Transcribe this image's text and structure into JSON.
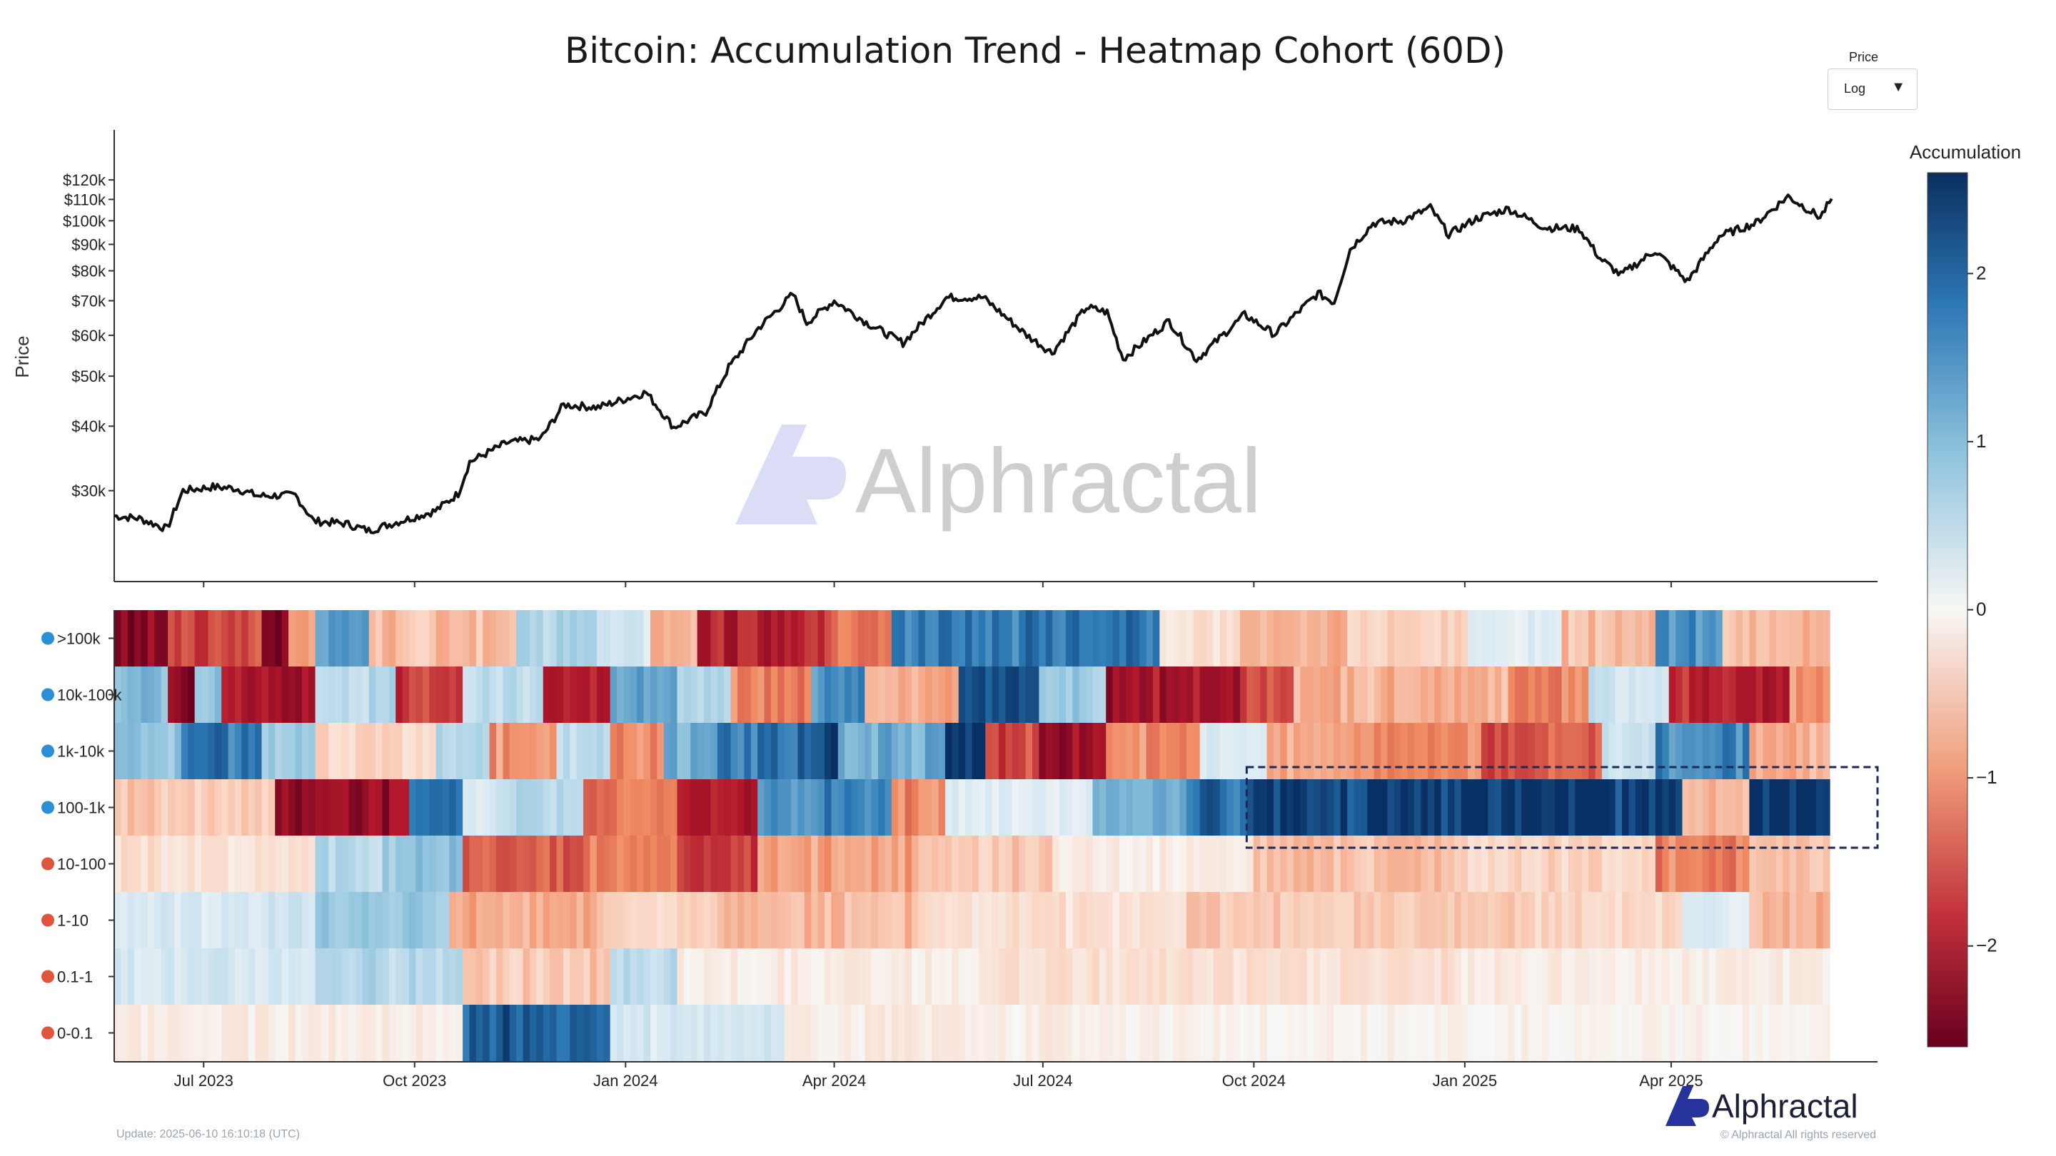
{
  "title": "Bitcoin: Accumulation Trend - Heatmap Cohort (60D)",
  "scale_selector": {
    "label": "Price",
    "value": "Log",
    "arrow": "▼"
  },
  "update_text": "Update: 2025-06-10 16:10:18 (UTC)",
  "copyright": "© Alphractal All rights reserved",
  "brand": "Alphractal",
  "watermark": "Alphractal",
  "colors": {
    "line": "#111111",
    "dark_blue": "#0b3a6e",
    "dark_red": "#7a0c1e",
    "neutral": "#f6f6f4",
    "highlight": "#1c2a5a"
  },
  "chart_data": [
    {
      "type": "line",
      "ylabel": "Price",
      "yscale": "log",
      "ylim": [
        20000,
        150000
      ],
      "y_ticks": [
        30000,
        40000,
        50000,
        60000,
        70000,
        80000,
        90000,
        100000,
        110000,
        120000
      ],
      "y_tick_labels": [
        "$30k",
        "$40k",
        "$50k",
        "$60k",
        "$70k",
        "$80k",
        "$90k",
        "$100k",
        "$110k",
        "$120k"
      ],
      "xlim": [
        "2023-05-23",
        "2025-06-30"
      ],
      "x_ticks": [
        "2023-07-01",
        "2023-10-01",
        "2024-01-01",
        "2024-04-01",
        "2024-07-01",
        "2024-10-01",
        "2025-01-01",
        "2025-04-01"
      ],
      "x_tick_labels": [
        "Jul 2023",
        "Oct 2023",
        "Jan 2024",
        "Apr 2024",
        "Jul 2024",
        "Oct 2024",
        "Jan 2025",
        "Apr 2025"
      ],
      "series": [
        {
          "points": [
            [
              "2023-05-23",
              26800
            ],
            [
              "2023-06-03",
              26500
            ],
            [
              "2023-06-15",
              25300
            ],
            [
              "2023-06-22",
              30000
            ],
            [
              "2023-07-05",
              30500
            ],
            [
              "2023-07-15",
              30300
            ],
            [
              "2023-07-25",
              29300
            ],
            [
              "2023-08-10",
              29400
            ],
            [
              "2023-08-18",
              26200
            ],
            [
              "2023-09-01",
              25900
            ],
            [
              "2023-09-11",
              25100
            ],
            [
              "2023-09-25",
              26200
            ],
            [
              "2023-10-10",
              27400
            ],
            [
              "2023-10-20",
              29600
            ],
            [
              "2023-10-25",
              34100
            ],
            [
              "2023-11-10",
              37100
            ],
            [
              "2023-11-25",
              37800
            ],
            [
              "2023-12-05",
              44000
            ],
            [
              "2023-12-20",
              43500
            ],
            [
              "2024-01-10",
              46500
            ],
            [
              "2024-01-22",
              39800
            ],
            [
              "2024-02-05",
              42600
            ],
            [
              "2024-02-15",
              52000
            ],
            [
              "2024-02-28",
              62000
            ],
            [
              "2024-03-14",
              72000
            ],
            [
              "2024-03-20",
              63500
            ],
            [
              "2024-04-01",
              70000
            ],
            [
              "2024-04-15",
              63500
            ],
            [
              "2024-05-01",
              58000
            ],
            [
              "2024-05-20",
              71000
            ],
            [
              "2024-06-05",
              71000
            ],
            [
              "2024-06-24",
              60000
            ],
            [
              "2024-07-05",
              55500
            ],
            [
              "2024-07-20",
              68000
            ],
            [
              "2024-07-29",
              66500
            ],
            [
              "2024-08-05",
              54000
            ],
            [
              "2024-08-25",
              64000
            ],
            [
              "2024-09-06",
              53800
            ],
            [
              "2024-09-27",
              65800
            ],
            [
              "2024-10-10",
              60300
            ],
            [
              "2024-10-29",
              72300
            ],
            [
              "2024-11-05",
              69500
            ],
            [
              "2024-11-12",
              88000
            ],
            [
              "2024-11-22",
              98900
            ],
            [
              "2024-12-05",
              100000
            ],
            [
              "2024-12-17",
              106000
            ],
            [
              "2024-12-25",
              94000
            ],
            [
              "2025-01-06",
              101000
            ],
            [
              "2025-01-20",
              105500
            ],
            [
              "2025-02-05",
              97000
            ],
            [
              "2025-02-20",
              96500
            ],
            [
              "2025-03-01",
              84500
            ],
            [
              "2025-03-10",
              78500
            ],
            [
              "2025-03-25",
              87500
            ],
            [
              "2025-04-08",
              76300
            ],
            [
              "2025-04-22",
              93400
            ],
            [
              "2025-05-08",
              99000
            ],
            [
              "2025-05-22",
              111500
            ],
            [
              "2025-06-05",
              101500
            ],
            [
              "2025-06-10",
              110300
            ]
          ]
        }
      ]
    },
    {
      "type": "heatmap",
      "colorbar_label": "Accumulation",
      "zlim": [
        -2.6,
        2.6
      ],
      "colorbar_ticks": [
        2,
        1,
        0,
        -1,
        -2
      ],
      "colorbar_tick_labels": [
        "2",
        "1",
        "0",
        "−1",
        "−2"
      ],
      "rows": [
        {
          "label": ">100k",
          "segments": [
            [
              0,
              8,
              -2.3
            ],
            [
              8,
              14,
              -1.6
            ],
            [
              14,
              22,
              -1.3
            ],
            [
              22,
              26,
              -2.4
            ],
            [
              26,
              30,
              -0.8
            ],
            [
              30,
              38,
              1.4
            ],
            [
              38,
              60,
              -0.5
            ],
            [
              60,
              72,
              0.7
            ],
            [
              72,
              80,
              0.3
            ],
            [
              80,
              87,
              -0.6
            ],
            [
              87,
              106,
              -1.8
            ],
            [
              106,
              116,
              -1.1
            ],
            [
              116,
              136,
              1.8
            ],
            [
              136,
              156,
              1.9
            ],
            [
              156,
              168,
              -0.2
            ],
            [
              168,
              184,
              -0.6
            ],
            [
              184,
              202,
              -0.3
            ],
            [
              202,
              216,
              0.2
            ],
            [
              216,
              230,
              -0.5
            ],
            [
              230,
              240,
              1.5
            ],
            [
              240,
              256,
              -0.5
            ]
          ]
        },
        {
          "label": "10k-100k",
          "segments": [
            [
              0,
              8,
              1.0
            ],
            [
              8,
              12,
              -2.4
            ],
            [
              12,
              16,
              0.9
            ],
            [
              16,
              30,
              -1.9
            ],
            [
              30,
              42,
              0.6
            ],
            [
              42,
              52,
              -1.6
            ],
            [
              52,
              64,
              0.5
            ],
            [
              64,
              74,
              -1.7
            ],
            [
              74,
              84,
              1.3
            ],
            [
              84,
              92,
              0.6
            ],
            [
              92,
              104,
              -1.0
            ],
            [
              104,
              112,
              1.5
            ],
            [
              112,
              126,
              -0.6
            ],
            [
              126,
              138,
              2.4
            ],
            [
              138,
              148,
              0.8
            ],
            [
              148,
              168,
              -2.0
            ],
            [
              168,
              176,
              -1.4
            ],
            [
              176,
              208,
              -0.6
            ],
            [
              208,
              220,
              -1.0
            ],
            [
              220,
              232,
              0.4
            ],
            [
              232,
              250,
              -1.8
            ],
            [
              250,
              256,
              -0.8
            ]
          ]
        },
        {
          "label": "1k-10k",
          "segments": [
            [
              0,
              10,
              0.9
            ],
            [
              10,
              22,
              1.8
            ],
            [
              22,
              30,
              0.8
            ],
            [
              30,
              48,
              -0.3
            ],
            [
              48,
              56,
              0.6
            ],
            [
              56,
              66,
              -0.8
            ],
            [
              66,
              74,
              0.5
            ],
            [
              74,
              82,
              -0.9
            ],
            [
              82,
              90,
              1.2
            ],
            [
              90,
              102,
              1.8
            ],
            [
              102,
              108,
              2.3
            ],
            [
              108,
              124,
              1.2
            ],
            [
              124,
              130,
              2.4
            ],
            [
              130,
              138,
              -1.4
            ],
            [
              138,
              148,
              -2.1
            ],
            [
              148,
              162,
              -0.9
            ],
            [
              162,
              172,
              0.3
            ],
            [
              172,
              188,
              -0.7
            ],
            [
              188,
              204,
              -0.9
            ],
            [
              204,
              222,
              -1.3
            ],
            [
              222,
              230,
              0.4
            ],
            [
              230,
              244,
              1.6
            ],
            [
              244,
              256,
              -0.6
            ]
          ]
        },
        {
          "label": "100-1k",
          "segments": [
            [
              0,
              24,
              -0.4
            ],
            [
              24,
              44,
              -2.1
            ],
            [
              44,
              52,
              1.9
            ],
            [
              52,
              58,
              0.3
            ],
            [
              58,
              70,
              0.6
            ],
            [
              70,
              84,
              -1.1
            ],
            [
              84,
              96,
              -1.8
            ],
            [
              96,
              104,
              1.4
            ],
            [
              104,
              116,
              1.7
            ],
            [
              116,
              124,
              -0.9
            ],
            [
              124,
              146,
              0.2
            ],
            [
              146,
              160,
              1.2
            ],
            [
              160,
              170,
              2.0
            ],
            [
              170,
              234,
              2.5
            ],
            [
              234,
              244,
              -0.5
            ],
            [
              244,
              256,
              2.5
            ]
          ]
        },
        {
          "label": "10-100",
          "segments": [
            [
              0,
              30,
              -0.2
            ],
            [
              30,
              40,
              0.6
            ],
            [
              40,
              52,
              0.9
            ],
            [
              52,
              70,
              -1.3
            ],
            [
              70,
              84,
              -1.0
            ],
            [
              84,
              96,
              -1.6
            ],
            [
              96,
              120,
              -0.7
            ],
            [
              120,
              140,
              -0.4
            ],
            [
              140,
              170,
              -0.1
            ],
            [
              170,
              200,
              -0.5
            ],
            [
              200,
              230,
              -0.3
            ],
            [
              230,
              244,
              -1.0
            ],
            [
              244,
              256,
              -0.4
            ]
          ]
        },
        {
          "label": "1-10",
          "segments": [
            [
              0,
              30,
              0.3
            ],
            [
              30,
              50,
              0.8
            ],
            [
              50,
              74,
              -0.6
            ],
            [
              74,
              90,
              -0.3
            ],
            [
              90,
              120,
              -0.5
            ],
            [
              120,
              160,
              -0.2
            ],
            [
              160,
              210,
              -0.4
            ],
            [
              210,
              234,
              -0.3
            ],
            [
              234,
              244,
              0.2
            ],
            [
              244,
              256,
              -0.6
            ]
          ]
        },
        {
          "label": "0.1-1",
          "segments": [
            [
              0,
              30,
              0.3
            ],
            [
              30,
              52,
              0.6
            ],
            [
              52,
              74,
              -0.4
            ],
            [
              74,
              84,
              0.5
            ],
            [
              84,
              130,
              -0.1
            ],
            [
              130,
              200,
              -0.2
            ],
            [
              200,
              256,
              -0.1
            ]
          ]
        },
        {
          "label": "0-0.1",
          "segments": [
            [
              0,
              52,
              -0.1
            ],
            [
              52,
              74,
              2.1
            ],
            [
              74,
              100,
              0.3
            ],
            [
              100,
              150,
              -0.1
            ],
            [
              150,
              256,
              -0.05
            ]
          ]
        }
      ],
      "highlight": {
        "row": "100-1k",
        "from": "2024-10-01"
      }
    }
  ]
}
